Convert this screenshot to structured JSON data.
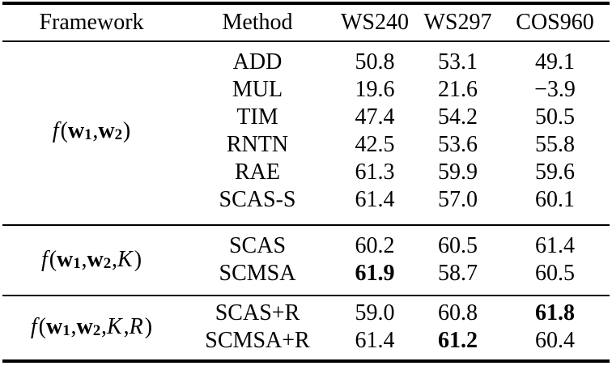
{
  "page": {
    "background_color": "#ffffff",
    "text_color": "#000000"
  },
  "table": {
    "headers": [
      {
        "label": "Framework"
      },
      {
        "label": "Method"
      },
      {
        "label": "WS240"
      },
      {
        "label": "WS297"
      },
      {
        "label": "COS960"
      }
    ],
    "groups": [
      {
        "framework_plain": "f(w1, w2)",
        "framework_tokens": [
          {
            "text": "f",
            "style": "italic"
          },
          {
            "text": "(",
            "style": "plain"
          },
          {
            "text": "w",
            "style": "bold"
          },
          {
            "text": "1",
            "style": "sub"
          },
          {
            "text": ", ",
            "style": "plain"
          },
          {
            "text": "w",
            "style": "bold"
          },
          {
            "text": "2",
            "style": "sub"
          },
          {
            "text": ")",
            "style": "plain"
          }
        ],
        "rows": [
          {
            "method": "ADD",
            "values": [
              {
                "text": "50.8",
                "bold": false
              },
              {
                "text": "53.1",
                "bold": false
              },
              {
                "text": "49.1",
                "bold": false
              }
            ]
          },
          {
            "method": "MUL",
            "values": [
              {
                "text": "19.6",
                "bold": false
              },
              {
                "text": "21.6",
                "bold": false
              },
              {
                "text": "−3.9",
                "bold": false
              }
            ]
          },
          {
            "method": "TIM",
            "values": [
              {
                "text": "47.4",
                "bold": false
              },
              {
                "text": "54.2",
                "bold": false
              },
              {
                "text": "50.5",
                "bold": false
              }
            ]
          },
          {
            "method": "RNTN",
            "values": [
              {
                "text": "42.5",
                "bold": false
              },
              {
                "text": "53.6",
                "bold": false
              },
              {
                "text": "55.8",
                "bold": false
              }
            ]
          },
          {
            "method": "RAE",
            "values": [
              {
                "text": "61.3",
                "bold": false
              },
              {
                "text": "59.9",
                "bold": false
              },
              {
                "text": "59.6",
                "bold": false
              }
            ]
          },
          {
            "method": "SCAS-S",
            "values": [
              {
                "text": "61.4",
                "bold": false
              },
              {
                "text": "57.0",
                "bold": false
              },
              {
                "text": "60.1",
                "bold": false
              }
            ]
          }
        ]
      },
      {
        "framework_plain": "f(w1, w2, K)",
        "framework_tokens": [
          {
            "text": "f",
            "style": "italic"
          },
          {
            "text": "(",
            "style": "plain"
          },
          {
            "text": "w",
            "style": "bold"
          },
          {
            "text": "1",
            "style": "sub"
          },
          {
            "text": ", ",
            "style": "plain"
          },
          {
            "text": "w",
            "style": "bold"
          },
          {
            "text": "2",
            "style": "sub"
          },
          {
            "text": ", ",
            "style": "plain"
          },
          {
            "text": "K",
            "style": "italic"
          },
          {
            "text": ")",
            "style": "plain"
          }
        ],
        "rows": [
          {
            "method": "SCAS",
            "values": [
              {
                "text": "60.2",
                "bold": false
              },
              {
                "text": "60.5",
                "bold": false
              },
              {
                "text": "61.4",
                "bold": false
              }
            ]
          },
          {
            "method": "SCMSA",
            "values": [
              {
                "text": "61.9",
                "bold": true
              },
              {
                "text": "58.7",
                "bold": false
              },
              {
                "text": "60.5",
                "bold": false
              }
            ]
          }
        ]
      },
      {
        "framework_plain": "f(w1, w2, K, R)",
        "framework_tokens": [
          {
            "text": "f",
            "style": "italic"
          },
          {
            "text": "(",
            "style": "plain"
          },
          {
            "text": "w",
            "style": "bold"
          },
          {
            "text": "1",
            "style": "sub"
          },
          {
            "text": ", ",
            "style": "plain"
          },
          {
            "text": "w",
            "style": "bold"
          },
          {
            "text": "2",
            "style": "sub"
          },
          {
            "text": ", ",
            "style": "plain"
          },
          {
            "text": "K",
            "style": "italic"
          },
          {
            "text": ", ",
            "style": "plain"
          },
          {
            "text": "R",
            "style": "italic"
          },
          {
            "text": ")",
            "style": "plain"
          }
        ],
        "rows": [
          {
            "method": "SCAS+R",
            "values": [
              {
                "text": "59.0",
                "bold": false
              },
              {
                "text": "60.8",
                "bold": false
              },
              {
                "text": "61.8",
                "bold": true
              }
            ]
          },
          {
            "method": "SCMSA+R",
            "values": [
              {
                "text": "61.4",
                "bold": false
              },
              {
                "text": "61.2",
                "bold": true
              },
              {
                "text": "60.4",
                "bold": false
              }
            ]
          }
        ]
      }
    ]
  }
}
